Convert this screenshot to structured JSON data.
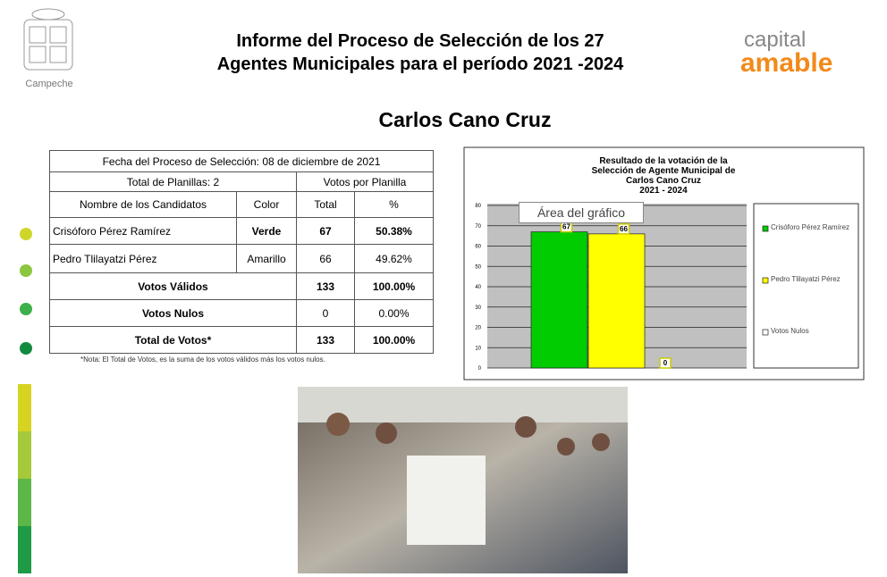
{
  "header": {
    "title": [
      "Informe del Proceso de Selección de los 27",
      "Agentes Municipales para el período 2021 -2024"
    ],
    "left_logo": "Campeche",
    "right_logo": [
      "capital",
      "amable"
    ]
  },
  "name": "Carlos Cano Cruz",
  "table": {
    "caption": "Fecha del Proceso de Selección: 08 de diciembre de 2021",
    "subheader": [
      "Total de Planillas: 2",
      "Votos por Planilla"
    ],
    "header": [
      "Nombre de los Candidatos",
      "Color",
      "Total",
      "%"
    ],
    "rows": [
      [
        "Crisóforo Pérez Ramírez",
        "Verde",
        "67",
        "50.38%"
      ],
      [
        "Pedro Tlilayatzi Pérez",
        "Amarillo",
        "66",
        "49.62%"
      ]
    ],
    "summary": [
      [
        "Votos Válidos",
        "133",
        "100.00%"
      ],
      [
        "Votos Nulos",
        "0",
        "0.00%"
      ],
      [
        "Total de Votos*",
        "133",
        "100.00%"
      ]
    ],
    "note": "*Nota: El Total de Votos, es la suma de los votos válidos más los votos nulos."
  },
  "chart": {
    "type": "bar",
    "title": [
      "Resultado de la votación de la",
      "Selección de Agente Municipal de",
      "Carlos Cano Cruz",
      "2021 - 2024"
    ],
    "tooltip": "Área del gráfico",
    "series": [
      {
        "name": "Crisóforo Pérez Ramírez",
        "color": "#00cc00",
        "values": [
          67
        ]
      },
      {
        "name": "Pedro Tlilayatzi Pérez",
        "color": "#ffff00",
        "values": [
          66
        ]
      },
      {
        "name": "Votos Nulos",
        "color": "#ffffff",
        "values": [
          0
        ]
      }
    ],
    "ylim": [
      0,
      80
    ],
    "yticks": [
      0,
      10,
      20,
      30,
      40,
      50,
      60,
      70,
      80
    ]
  }
}
